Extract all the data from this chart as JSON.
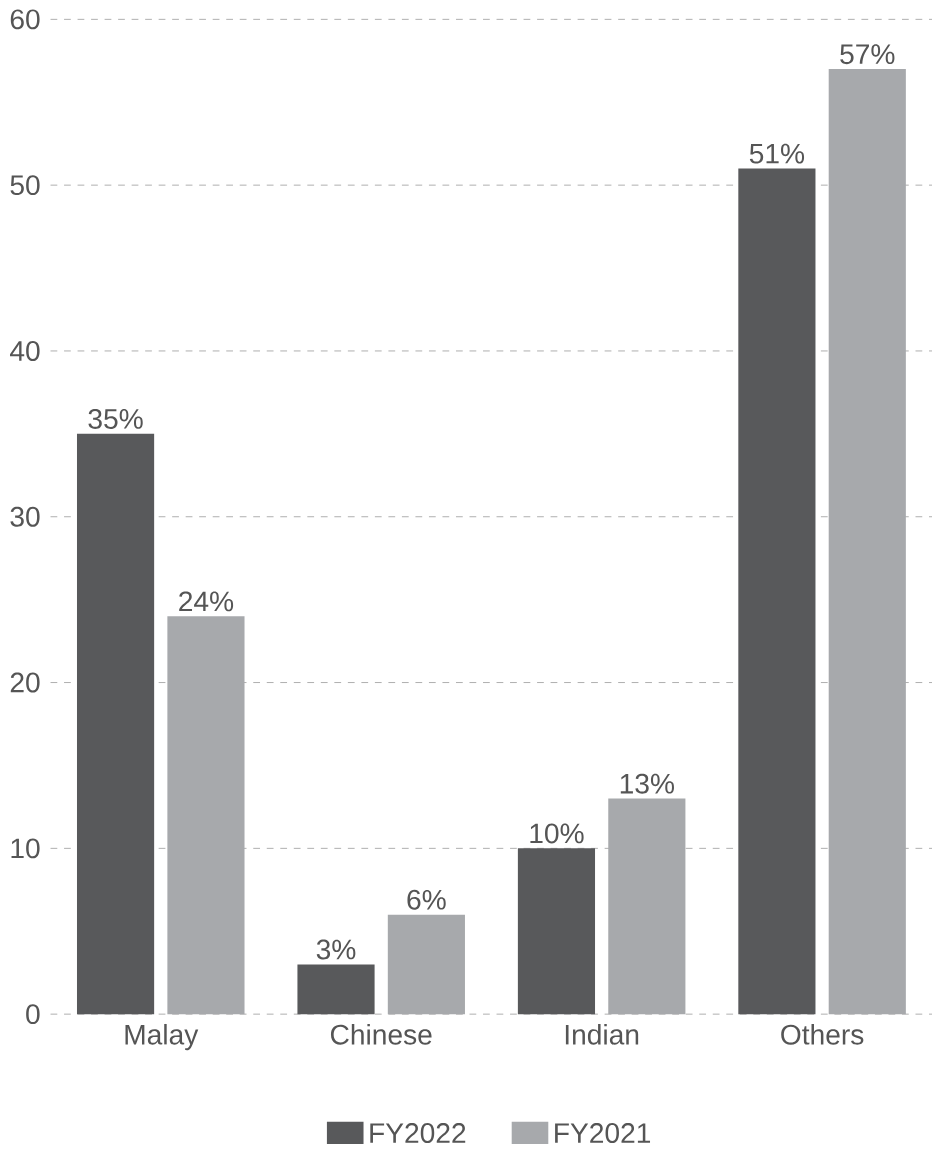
{
  "chart_data": {
    "type": "bar",
    "categories": [
      "Malay",
      "Chinese",
      "Indian",
      "Others"
    ],
    "series": [
      {
        "name": "FY2022",
        "color": "#58595b",
        "values": [
          35,
          3,
          10,
          51
        ],
        "value_labels": [
          "35%",
          "3%",
          "10%",
          "51%"
        ]
      },
      {
        "name": "FY2021",
        "color": "#a7a9ac",
        "values": [
          24,
          6,
          13,
          57
        ],
        "value_labels": [
          "24%",
          "6%",
          "13%",
          "57%"
        ]
      }
    ],
    "ylim": [
      0,
      60
    ],
    "yticks": [
      0,
      10,
      20,
      30,
      40,
      50,
      60
    ],
    "grid": "y",
    "legend": "bottom"
  }
}
